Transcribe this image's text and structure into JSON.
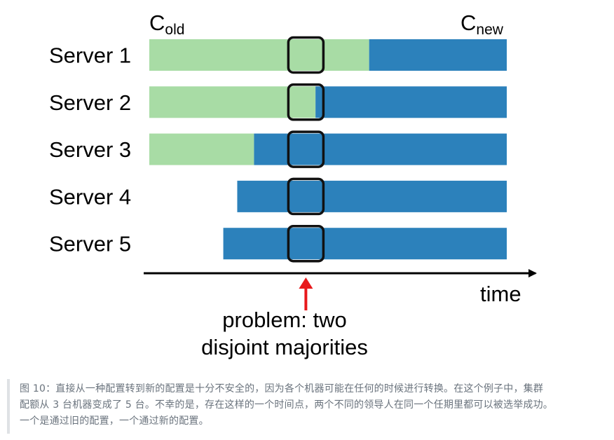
{
  "diagram": {
    "config_old": {
      "base": "C",
      "sub": "old"
    },
    "config_new": {
      "base": "C",
      "sub": "new"
    },
    "colors": {
      "old": "#a8dca5",
      "new": "#2c81bb",
      "box": "#111111",
      "arrow": "#e8191c",
      "axis": "#000000"
    },
    "time_range": [
      0,
      100
    ],
    "problem_time": 43.8,
    "servers": [
      {
        "label": "Server 1",
        "old_start": 0,
        "switch": 61.5,
        "end": 100
      },
      {
        "label": "Server 2",
        "old_start": 0,
        "switch": 46.5,
        "end": 100
      },
      {
        "label": "Server 3",
        "old_start": 0,
        "switch": 29.3,
        "end": 100
      },
      {
        "label": "Server 4",
        "old_start": null,
        "switch": 24.6,
        "end": 100
      },
      {
        "label": "Server 5",
        "old_start": null,
        "switch": 20.7,
        "end": 100
      }
    ],
    "axis_label": "time",
    "problem_label": [
      "problem: two",
      "disjoint majorities"
    ]
  },
  "caption": {
    "line1": "图 10：直接从一种配置转到新的配置是十分不安全的，因为各个机器可能在任何的时候进行转换。在这个例子中，集群",
    "line2": "配额从 3 台机器变成了 5 台。不幸的是，存在这样的一个时间点，两个不同的领导人在同一个任期里都可以被选举成功。",
    "line3": "一个是通过旧的配置，一个通过新的配置。"
  }
}
